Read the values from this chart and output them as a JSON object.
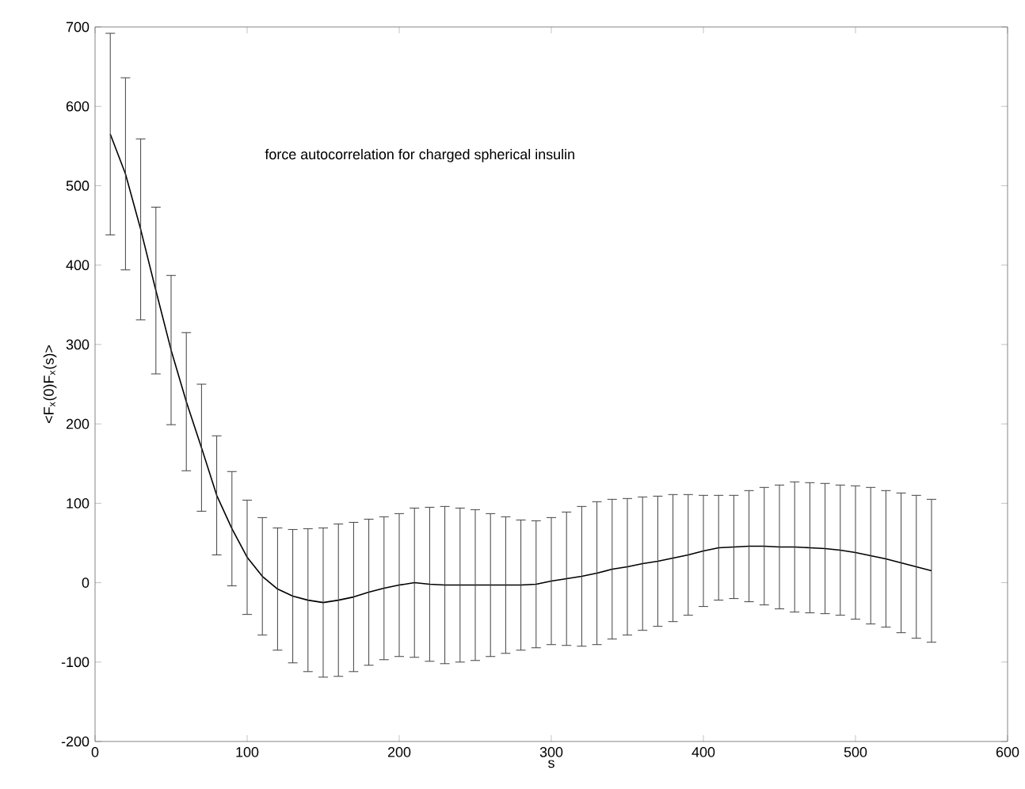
{
  "chart_data": {
    "type": "line",
    "xlabel": "s",
    "ylabel": "<F$_{x}$(0)F$_{x}$(s)>",
    "annotations": [
      "force autocorrelation for charged spherical insulin"
    ],
    "x": [
      10,
      20,
      30,
      40,
      50,
      60,
      70,
      80,
      90,
      100,
      110,
      120,
      130,
      140,
      150,
      160,
      170,
      180,
      190,
      200,
      210,
      220,
      230,
      240,
      250,
      260,
      270,
      280,
      290,
      300,
      310,
      320,
      330,
      340,
      350,
      360,
      370,
      380,
      390,
      400,
      410,
      420,
      430,
      440,
      450,
      460,
      470,
      480,
      490,
      500,
      510,
      520,
      530,
      540,
      550
    ],
    "values": [
      565,
      515,
      445,
      368,
      293,
      228,
      170,
      110,
      68,
      32,
      8,
      -8,
      -17,
      -22,
      -25,
      -22,
      -18,
      -12,
      -7,
      -3,
      0,
      -2,
      -3,
      -3,
      -3,
      -3,
      -3,
      -3,
      -2,
      2,
      5,
      8,
      12,
      17,
      20,
      24,
      27,
      31,
      35,
      40,
      44,
      45,
      46,
      46,
      45,
      45,
      44,
      43,
      41,
      38,
      34,
      30,
      25,
      20,
      15
    ],
    "errors": [
      127,
      121,
      114,
      105,
      94,
      87,
      80,
      75,
      72,
      72,
      74,
      77,
      84,
      90,
      94,
      96,
      94,
      92,
      90,
      90,
      94,
      97,
      99,
      97,
      95,
      90,
      86,
      82,
      80,
      80,
      84,
      88,
      90,
      88,
      86,
      84,
      82,
      80,
      76,
      70,
      66,
      65,
      70,
      74,
      78,
      82,
      82,
      82,
      82,
      84,
      86,
      86,
      88,
      90,
      90
    ],
    "color": "#000000",
    "xlim": [
      0,
      600
    ],
    "xticks": [
      0,
      100,
      200,
      300,
      400,
      500,
      600
    ],
    "ylim": [
      -200,
      700
    ],
    "yticks": [
      -200,
      -100,
      0,
      100,
      200,
      300,
      400,
      500,
      600,
      700
    ],
    "grid": false,
    "marker": "none",
    "line_style": "solid"
  }
}
